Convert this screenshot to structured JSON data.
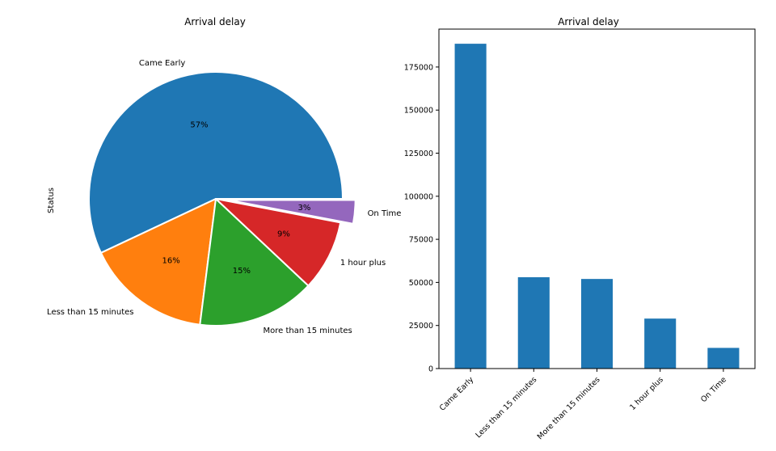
{
  "chart_data": [
    {
      "type": "pie",
      "title": "Arrival delay",
      "ylabel": "Status",
      "categories": [
        "Came Early",
        "Less than 15 minutes",
        "More than 15 minutes",
        "1 hour plus",
        "On Time"
      ],
      "values": [
        57,
        16,
        15,
        9,
        3
      ],
      "value_labels": [
        "57%",
        "16%",
        "15%",
        "9%",
        "3%"
      ],
      "exploded": [
        "On Time"
      ],
      "colors": [
        "#1f77b4",
        "#ff7f0e",
        "#2ca02c",
        "#d62728",
        "#9467bd"
      ]
    },
    {
      "type": "bar",
      "title": "Arrival delay",
      "categories": [
        "Came Early",
        "Less than 15 minutes",
        "More than 15 minutes",
        "1 hour plus",
        "On Time"
      ],
      "values": [
        188500,
        53000,
        52000,
        29000,
        12000
      ],
      "ylim": [
        0,
        197000
      ],
      "yticks": [
        0,
        25000,
        50000,
        75000,
        100000,
        125000,
        150000,
        175000
      ],
      "color": "#1f77b4"
    }
  ]
}
